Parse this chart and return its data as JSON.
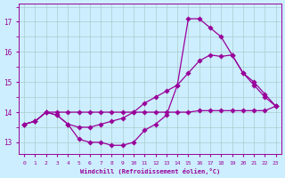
{
  "xlabel": "Windchill (Refroidissement éolien,°C)",
  "background_color": "#cceeff",
  "grid_color": "#aacccc",
  "line_color": "#990099",
  "hours": [
    0,
    1,
    2,
    3,
    4,
    5,
    6,
    7,
    8,
    9,
    10,
    11,
    12,
    13,
    14,
    15,
    16,
    17,
    18,
    19,
    20,
    21,
    22,
    23
  ],
  "line1": [
    13.6,
    13.7,
    14.0,
    13.9,
    13.6,
    13.1,
    13.0,
    13.0,
    12.9,
    12.9,
    13.0,
    13.4,
    13.6,
    13.9,
    14.9,
    17.1,
    17.1,
    16.8,
    16.5,
    15.9,
    15.3,
    14.9,
    14.5,
    14.2
  ],
  "line2": [
    13.6,
    13.7,
    14.0,
    13.9,
    13.6,
    13.5,
    13.5,
    13.6,
    13.7,
    13.8,
    14.0,
    14.3,
    14.5,
    14.7,
    14.9,
    15.3,
    15.7,
    15.9,
    15.85,
    15.9,
    15.3,
    15.0,
    14.6,
    14.2
  ],
  "line3": [
    13.6,
    13.7,
    14.0,
    14.0,
    14.0,
    14.0,
    14.0,
    14.0,
    14.0,
    14.0,
    14.0,
    14.0,
    14.0,
    14.0,
    14.0,
    14.0,
    14.05,
    14.05,
    14.05,
    14.05,
    14.05,
    14.05,
    14.05,
    14.2
  ],
  "ylim": [
    12.6,
    17.6
  ],
  "yticks": [
    13,
    14,
    15,
    16,
    17
  ],
  "xlim": [
    -0.5,
    23.5
  ],
  "xticks": [
    0,
    1,
    2,
    3,
    4,
    5,
    6,
    7,
    8,
    9,
    10,
    11,
    12,
    13,
    14,
    15,
    16,
    17,
    18,
    19,
    20,
    21,
    22,
    23
  ]
}
